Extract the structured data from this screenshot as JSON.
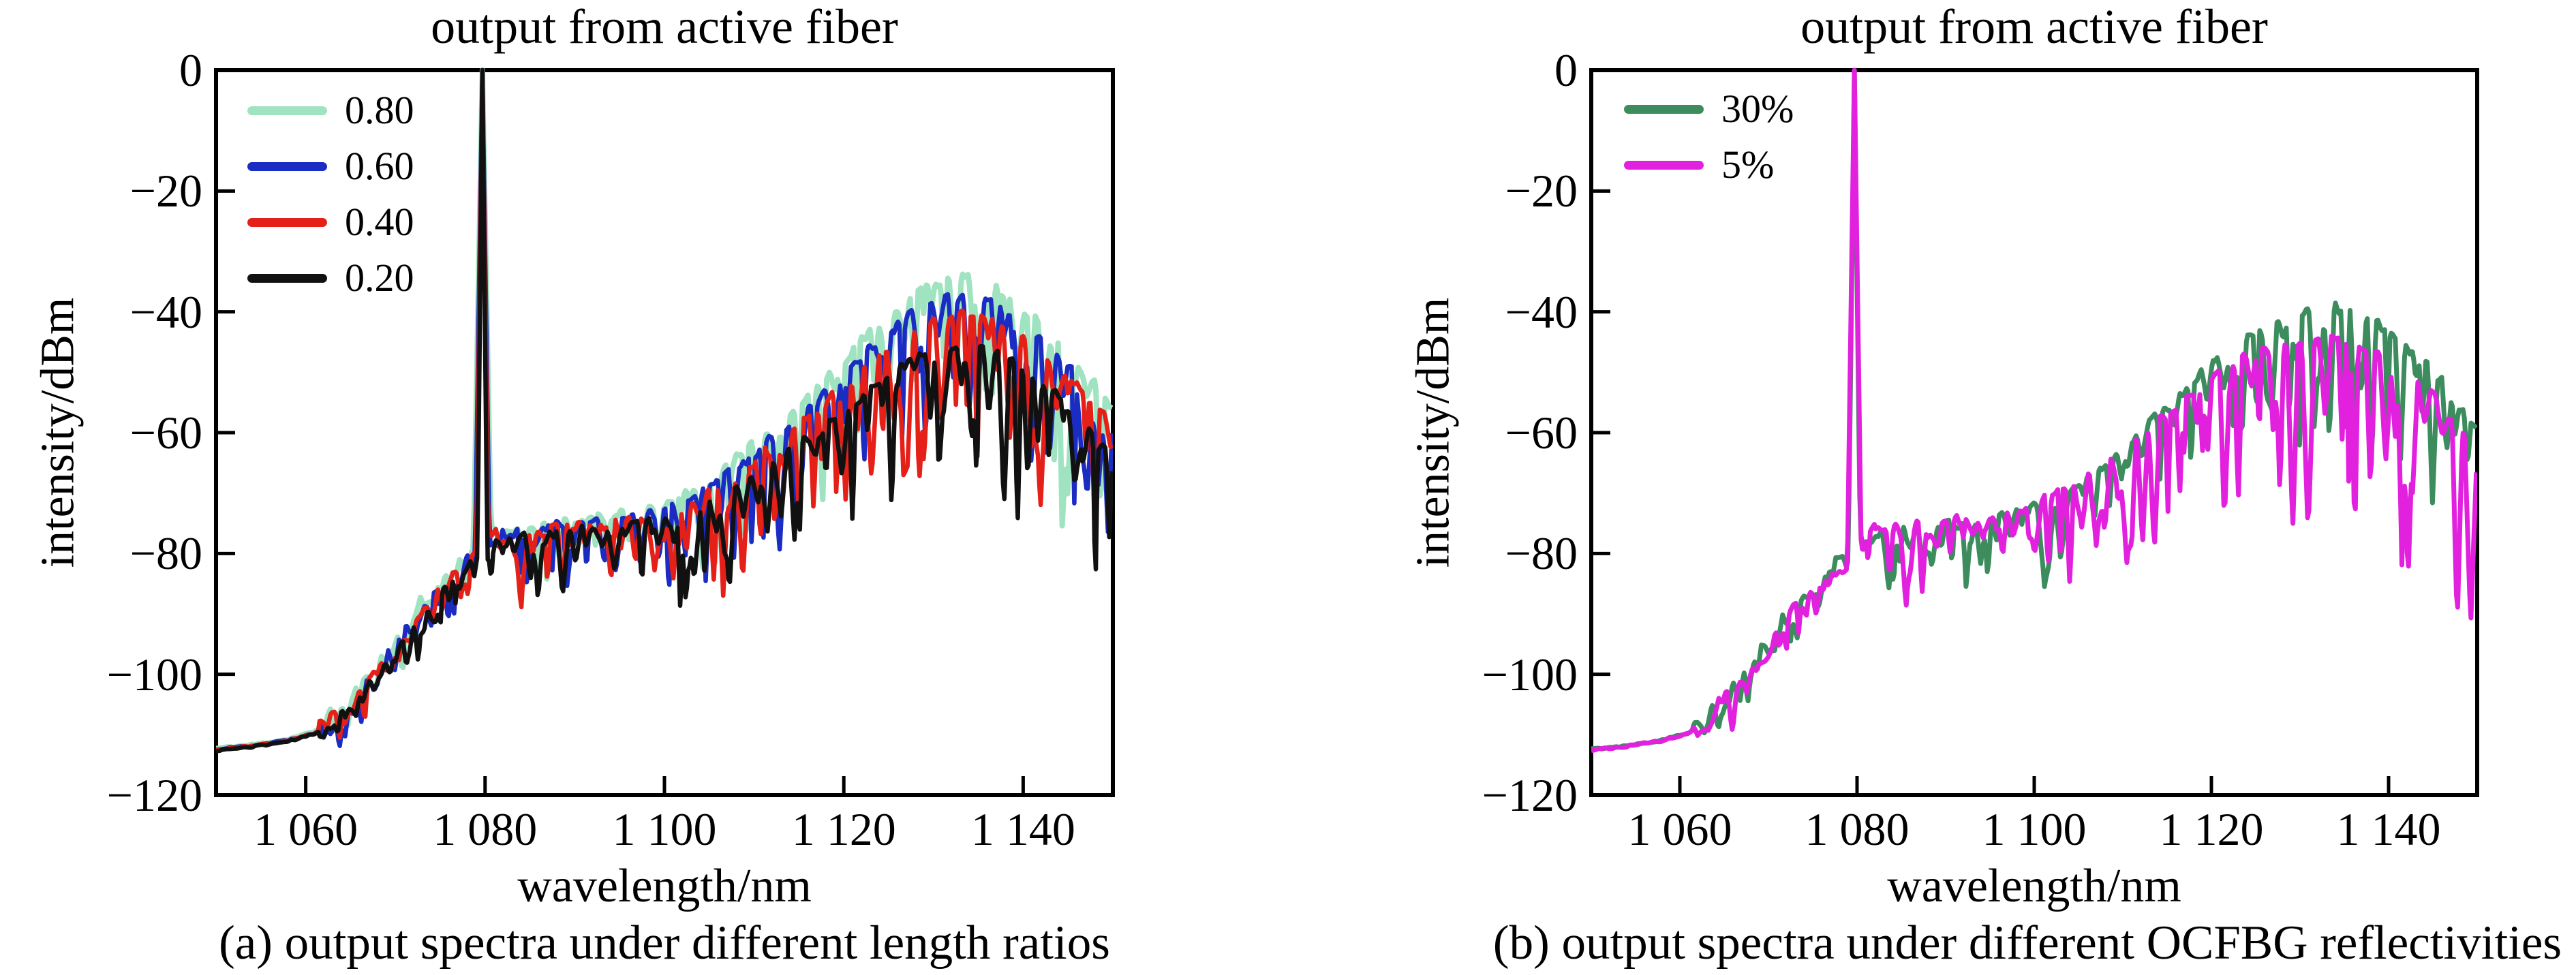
{
  "figure": {
    "background": "#ffffff",
    "axis_color": "#000000",
    "frame_line_width": 6
  },
  "chart_data": [
    {
      "type": "line",
      "title": "output from active fiber",
      "xlabel": "wavelength/nm",
      "ylabel": "intensity/dBm",
      "caption": "(a) output spectra under different length ratios",
      "xlim": [
        1050,
        1150
      ],
      "ylim": [
        -120,
        0
      ],
      "xticks": [
        1060,
        1080,
        1100,
        1120,
        1140
      ],
      "xtick_labels": [
        "1 060",
        "1 080",
        "1 100",
        "1 120",
        "1 140"
      ],
      "yticks": [
        0,
        -20,
        -40,
        -60,
        -80,
        -100,
        -120
      ],
      "ytick_labels": [
        "0",
        "−20",
        "−40",
        "−60",
        "−80",
        "−100",
        "−120"
      ],
      "grid": false,
      "legend_position": "upper-left",
      "laser_line_nm": 1079.7,
      "laser_peak_dbm": 0,
      "series": [
        {
          "name": "0.80",
          "color": "#9fe3c1",
          "line_width": 8,
          "seed": 11,
          "spike_max": 20,
          "peak_halfwidth_nm": 1.1,
          "envelope": [
            [
              1050,
              -112.3
            ],
            [
              1054,
              -111.7
            ],
            [
              1058,
              -110.8
            ],
            [
              1061,
              -109.5
            ],
            [
              1064,
              -106.5
            ],
            [
              1067,
              -101.5
            ],
            [
              1070,
              -95
            ],
            [
              1073,
              -89
            ],
            [
              1076,
              -84
            ],
            [
              1079,
              -79.5
            ],
            [
              1081,
              -77
            ],
            [
              1084,
              -75.8
            ],
            [
              1088,
              -75
            ],
            [
              1092,
              -74.3
            ],
            [
              1096,
              -73.3
            ],
            [
              1100,
              -71.8
            ],
            [
              1104,
              -69
            ],
            [
              1108,
              -64.5
            ],
            [
              1112,
              -59.5
            ],
            [
              1116,
              -54
            ],
            [
              1120,
              -48
            ],
            [
              1124,
              -41.5
            ],
            [
              1128,
              -36.8
            ],
            [
              1131,
              -34.8
            ],
            [
              1134,
              -34.3
            ],
            [
              1137,
              -36
            ],
            [
              1140,
              -39.5
            ],
            [
              1143,
              -43.5
            ],
            [
              1146,
              -48.5
            ],
            [
              1150,
              -56
            ]
          ]
        },
        {
          "name": "0.60",
          "color": "#1b2cc2",
          "line_width": 6.5,
          "seed": 22,
          "spike_max": 20,
          "peak_halfwidth_nm": 0.9,
          "envelope": [
            [
              1050,
              -112.4
            ],
            [
              1054,
              -111.8
            ],
            [
              1058,
              -110.9
            ],
            [
              1061,
              -109.7
            ],
            [
              1064,
              -106.8
            ],
            [
              1067,
              -102
            ],
            [
              1070,
              -95.8
            ],
            [
              1073,
              -90
            ],
            [
              1076,
              -85
            ],
            [
              1079,
              -80.2
            ],
            [
              1081,
              -77.6
            ],
            [
              1084,
              -76.3
            ],
            [
              1088,
              -75.5
            ],
            [
              1092,
              -74.8
            ],
            [
              1096,
              -74
            ],
            [
              1100,
              -72.8
            ],
            [
              1104,
              -70
            ],
            [
              1108,
              -66
            ],
            [
              1112,
              -61
            ],
            [
              1116,
              -55.5
            ],
            [
              1120,
              -50
            ],
            [
              1124,
              -44.5
            ],
            [
              1128,
              -40
            ],
            [
              1131,
              -38
            ],
            [
              1134,
              -37.3
            ],
            [
              1137,
              -38.8
            ],
            [
              1140,
              -41.8
            ],
            [
              1143,
              -45.5
            ],
            [
              1146,
              -50
            ],
            [
              1150,
              -57
            ]
          ]
        },
        {
          "name": "0.40",
          "color": "#e52019",
          "line_width": 6.5,
          "seed": 33,
          "spike_max": 20,
          "peak_halfwidth_nm": 0.75,
          "envelope": [
            [
              1050,
              -112.5
            ],
            [
              1054,
              -111.9
            ],
            [
              1058,
              -111
            ],
            [
              1061,
              -109.8
            ],
            [
              1064,
              -107
            ],
            [
              1067,
              -102.5
            ],
            [
              1070,
              -96.5
            ],
            [
              1073,
              -91
            ],
            [
              1076,
              -86
            ],
            [
              1079,
              -81
            ],
            [
              1081,
              -78.2
            ],
            [
              1084,
              -76.8
            ],
            [
              1088,
              -76
            ],
            [
              1092,
              -75.3
            ],
            [
              1096,
              -74.5
            ],
            [
              1100,
              -73.3
            ],
            [
              1104,
              -70.8
            ],
            [
              1108,
              -67
            ],
            [
              1112,
              -62.5
            ],
            [
              1116,
              -57.5
            ],
            [
              1120,
              -52.5
            ],
            [
              1124,
              -46.5
            ],
            [
              1128,
              -43
            ],
            [
              1131,
              -41
            ],
            [
              1134,
              -40.3
            ],
            [
              1137,
              -41.8
            ],
            [
              1140,
              -44.5
            ],
            [
              1143,
              -48
            ],
            [
              1146,
              -52.5
            ],
            [
              1150,
              -59
            ]
          ]
        },
        {
          "name": "0.20",
          "color": "#111111",
          "line_width": 6.5,
          "seed": 44,
          "spike_max": 20,
          "peak_halfwidth_nm": 0.6,
          "envelope": [
            [
              1050,
              -112.6
            ],
            [
              1054,
              -112
            ],
            [
              1058,
              -111.1
            ],
            [
              1061,
              -109.9
            ],
            [
              1064,
              -107.2
            ],
            [
              1067,
              -102.8
            ],
            [
              1070,
              -97
            ],
            [
              1073,
              -91.8
            ],
            [
              1076,
              -86.8
            ],
            [
              1079,
              -81.8
            ],
            [
              1081,
              -78.8
            ],
            [
              1084,
              -77.3
            ],
            [
              1088,
              -76.5
            ],
            [
              1092,
              -75.8
            ],
            [
              1096,
              -75.2
            ],
            [
              1100,
              -74.3
            ],
            [
              1104,
              -72.3
            ],
            [
              1108,
              -69
            ],
            [
              1112,
              -65.3
            ],
            [
              1116,
              -61
            ],
            [
              1120,
              -56.2
            ],
            [
              1124,
              -51.5
            ],
            [
              1128,
              -47.5
            ],
            [
              1131,
              -45.8
            ],
            [
              1134,
              -45.3
            ],
            [
              1137,
              -46.5
            ],
            [
              1140,
              -49.5
            ],
            [
              1143,
              -53
            ],
            [
              1146,
              -57.5
            ],
            [
              1150,
              -65
            ]
          ]
        }
      ]
    },
    {
      "type": "line",
      "title": "output from active fiber",
      "xlabel": "wavelength/nm",
      "ylabel": "intensity/dBm",
      "caption": "(b) output spectra under different OCFBG reflectivities",
      "xlim": [
        1050,
        1150
      ],
      "ylim": [
        -120,
        0
      ],
      "xticks": [
        1060,
        1080,
        1100,
        1120,
        1140
      ],
      "xtick_labels": [
        "1 060",
        "1 080",
        "1 100",
        "1 120",
        "1 140"
      ],
      "yticks": [
        0,
        -20,
        -40,
        -60,
        -80,
        -100,
        -120
      ],
      "ytick_labels": [
        "0",
        "−20",
        "−40",
        "−60",
        "−80",
        "−100",
        "−120"
      ],
      "grid": false,
      "legend_position": "upper-left",
      "laser_line_nm": 1079.7,
      "laser_peak_dbm": 0,
      "series": [
        {
          "name": "30%",
          "color": "#3c8c5e",
          "line_width": 7,
          "seed": 55,
          "spike_max": 17,
          "peak_halfwidth_nm": 0.75,
          "envelope": [
            [
              1050,
              -112.4
            ],
            [
              1054,
              -111.8
            ],
            [
              1058,
              -110.9
            ],
            [
              1061,
              -109.6
            ],
            [
              1064,
              -106.6
            ],
            [
              1067,
              -101.8
            ],
            [
              1070,
              -95.5
            ],
            [
              1073,
              -89.5
            ],
            [
              1076,
              -84.5
            ],
            [
              1079,
              -80
            ],
            [
              1081,
              -77.5
            ],
            [
              1084,
              -76.2
            ],
            [
              1088,
              -75.4
            ],
            [
              1092,
              -74.8
            ],
            [
              1096,
              -74
            ],
            [
              1100,
              -72.5
            ],
            [
              1104,
              -69.5
            ],
            [
              1108,
              -65
            ],
            [
              1112,
              -60
            ],
            [
              1116,
              -54.5
            ],
            [
              1120,
              -48.8
            ],
            [
              1124,
              -43.8
            ],
            [
              1128,
              -41
            ],
            [
              1131,
              -39.8
            ],
            [
              1134,
              -39.5
            ],
            [
              1137,
              -40.8
            ],
            [
              1140,
              -43.3
            ],
            [
              1143,
              -46.8
            ],
            [
              1146,
              -51.5
            ],
            [
              1150,
              -60
            ]
          ]
        },
        {
          "name": "5%",
          "color": "#e121de",
          "line_width": 7,
          "seed": 66,
          "spike_max": 26,
          "peak_halfwidth_nm": 0.85,
          "envelope": [
            [
              1050,
              -112.5
            ],
            [
              1054,
              -111.9
            ],
            [
              1058,
              -111
            ],
            [
              1061,
              -109.7
            ],
            [
              1064,
              -106.8
            ],
            [
              1067,
              -102
            ],
            [
              1070,
              -96
            ],
            [
              1073,
              -90
            ],
            [
              1076,
              -85
            ],
            [
              1079,
              -80.3
            ],
            [
              1081,
              -77.2
            ],
            [
              1084,
              -75.8
            ],
            [
              1088,
              -75
            ],
            [
              1092,
              -74.3
            ],
            [
              1096,
              -73.5
            ],
            [
              1100,
              -72
            ],
            [
              1104,
              -69
            ],
            [
              1108,
              -65
            ],
            [
              1112,
              -60.5
            ],
            [
              1116,
              -55.5
            ],
            [
              1120,
              -51
            ],
            [
              1124,
              -47.3
            ],
            [
              1128,
              -45.2
            ],
            [
              1131,
              -44.6
            ],
            [
              1134,
              -44.5
            ],
            [
              1137,
              -45.5
            ],
            [
              1140,
              -47.8
            ],
            [
              1143,
              -51
            ],
            [
              1146,
              -55.5
            ],
            [
              1150,
              -64
            ]
          ]
        }
      ]
    }
  ]
}
